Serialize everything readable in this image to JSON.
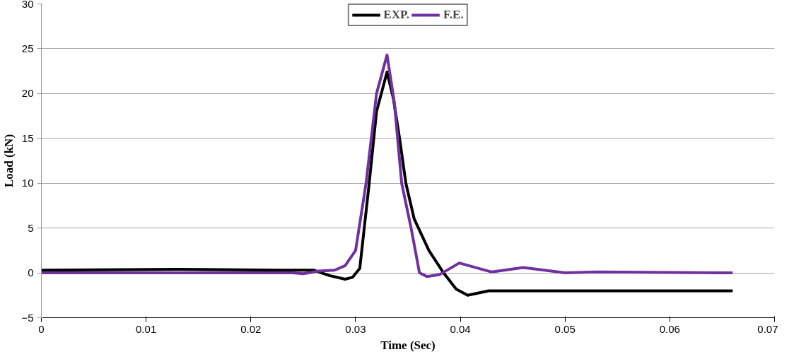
{
  "chart_data": {
    "type": "line",
    "xlabel": "Time (Sec)",
    "ylabel": "Load (kN)",
    "xlim": [
      0,
      0.07
    ],
    "xticks": [
      0,
      0.01,
      0.02,
      0.03,
      0.04,
      0.05,
      0.06,
      0.07
    ],
    "ylim": [
      -5,
      30
    ],
    "yticks": [
      -5,
      0,
      5,
      10,
      15,
      20,
      25,
      30
    ],
    "grid": "y",
    "legend": "top",
    "line_style": "solid",
    "marker": "none",
    "series": [
      {
        "name": "EXP.",
        "color": "#000000",
        "x": [
          0,
          0.013,
          0.023,
          0.026,
          0.0275,
          0.029,
          0.0297,
          0.0304,
          0.0313,
          0.032,
          0.033,
          0.0336,
          0.0342,
          0.0348,
          0.0356,
          0.037,
          0.0384,
          0.0396,
          0.0407,
          0.0427,
          0.047,
          0.055,
          0.066
        ],
        "values": [
          0.3,
          0.4,
          0.3,
          0.3,
          -0.3,
          -0.7,
          -0.5,
          0.5,
          10,
          18,
          22.4,
          19.5,
          15,
          10,
          6,
          2.5,
          0,
          -1.8,
          -2.5,
          -2.0,
          -2.0,
          -2.0,
          -2.0
        ]
      },
      {
        "name": "F.E.",
        "color": "#7030a0",
        "x": [
          0,
          0.024,
          0.025,
          0.0265,
          0.028,
          0.029,
          0.03,
          0.031,
          0.032,
          0.033,
          0.0337,
          0.0344,
          0.0353,
          0.0361,
          0.0368,
          0.038,
          0.0399,
          0.043,
          0.046,
          0.05,
          0.053,
          0.066
        ],
        "values": [
          0,
          0,
          -0.1,
          0.2,
          0.3,
          0.8,
          2.5,
          10,
          20,
          24.3,
          19,
          10,
          5,
          0,
          -0.4,
          -0.2,
          1.1,
          0.1,
          0.6,
          0.0,
          0.1,
          0
        ]
      }
    ]
  }
}
